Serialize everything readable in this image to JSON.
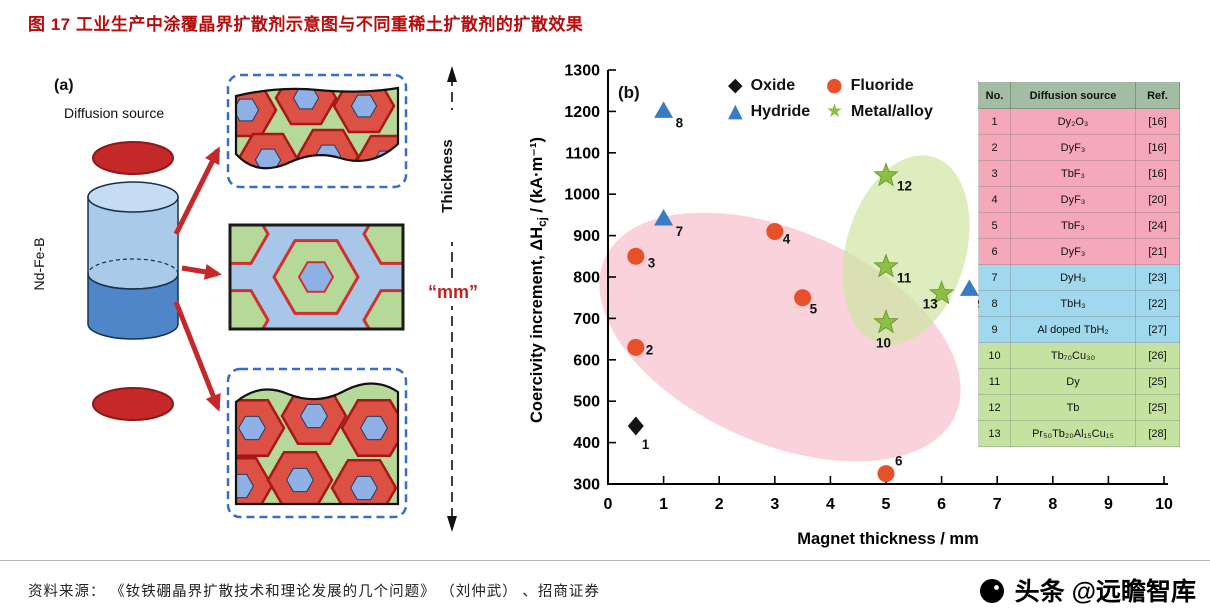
{
  "page": {
    "title": "图 17  工业生产中涂覆晶界扩散剂示意图与不同重稀土扩散剂的扩散效果",
    "source_line": "资料来源：  《钕铁硼晶界扩散技术和理论发展的几个问题》 （刘仲武） 、招商证券",
    "watermark": "头条 @远瞻智库"
  },
  "panel_a": {
    "label": "(a)",
    "diffusion_source": "Diffusion source",
    "material": "Nd-Fe-B",
    "thickness": "Thickness",
    "mm": "“mm”"
  },
  "chart_data": {
    "type": "scatter",
    "panel_label": "(b)",
    "xlabel": "Magnet thickness / mm",
    "ylabel": {
      "prefix": "Coercivity increment, ΔH",
      "sub": "cj",
      "suffix": " / (kA·m⁻¹)"
    },
    "xlim": [
      0,
      10
    ],
    "ylim": [
      300,
      1300
    ],
    "x_ticks": [
      0,
      1,
      2,
      3,
      4,
      5,
      6,
      7,
      8,
      9,
      10
    ],
    "y_ticks": [
      300,
      400,
      500,
      600,
      700,
      800,
      900,
      1000,
      1100,
      1200,
      1300
    ],
    "grid": false,
    "legend_position": "top-left-inside",
    "legend": [
      {
        "label": "Oxide",
        "marker": "diamond",
        "color": "#141414"
      },
      {
        "label": "Fluoride",
        "marker": "circle",
        "color": "#e8502a"
      },
      {
        "label": "Hydride",
        "marker": "triangle",
        "color": "#3a7cc4"
      },
      {
        "label": "Metal/alloy",
        "marker": "star",
        "color": "#8cc045"
      }
    ],
    "highlight_regions": [
      {
        "name": "fluoride-region",
        "color": "#f4a6ba"
      },
      {
        "name": "metal-alloy-region",
        "color": "#cfe6a2"
      }
    ],
    "points": [
      {
        "no": "1",
        "x": 0.5,
        "y": 440,
        "series": "Oxide"
      },
      {
        "no": "2",
        "x": 0.5,
        "y": 630,
        "series": "Fluoride"
      },
      {
        "no": "3",
        "x": 0.5,
        "y": 850,
        "series": "Fluoride"
      },
      {
        "no": "4",
        "x": 3.0,
        "y": 910,
        "series": "Fluoride"
      },
      {
        "no": "5",
        "x": 3.5,
        "y": 750,
        "series": "Fluoride"
      },
      {
        "no": "6",
        "x": 5.0,
        "y": 325,
        "series": "Fluoride"
      },
      {
        "no": "7",
        "x": 1.0,
        "y": 940,
        "series": "Hydride"
      },
      {
        "no": "8",
        "x": 1.0,
        "y": 1200,
        "series": "Hydride"
      },
      {
        "no": "9",
        "x": 6.5,
        "y": 770,
        "series": "Hydride"
      },
      {
        "no": "10",
        "x": 5.0,
        "y": 690,
        "series": "Metal/alloy"
      },
      {
        "no": "11",
        "x": 5.0,
        "y": 825,
        "series": "Metal/alloy"
      },
      {
        "no": "12",
        "x": 5.0,
        "y": 1045,
        "series": "Metal/alloy"
      },
      {
        "no": "13",
        "x": 6.0,
        "y": 760,
        "series": "Metal/alloy"
      }
    ],
    "table": {
      "headers": [
        "No.",
        "Diffusion source",
        "Ref."
      ],
      "rows": [
        {
          "no": "1",
          "source": "Dy₂O₃",
          "ref": "[16]",
          "group": "oxide"
        },
        {
          "no": "2",
          "source": "DyF₃",
          "ref": "[16]",
          "group": "fluoride"
        },
        {
          "no": "3",
          "source": "TbF₃",
          "ref": "[16]",
          "group": "fluoride"
        },
        {
          "no": "4",
          "source": "DyF₃",
          "ref": "[20]",
          "group": "fluoride"
        },
        {
          "no": "5",
          "source": "TbF₃",
          "ref": "[24]",
          "group": "fluoride"
        },
        {
          "no": "6",
          "source": "DyF₃",
          "ref": "[21]",
          "group": "fluoride"
        },
        {
          "no": "7",
          "source": "DyH₃",
          "ref": "[23]",
          "group": "hydride"
        },
        {
          "no": "8",
          "source": "TbH₃",
          "ref": "[22]",
          "group": "hydride"
        },
        {
          "no": "9",
          "source": "Al doped TbH₂",
          "ref": "[27]",
          "group": "hydride"
        },
        {
          "no": "10",
          "source": "Tb₇₀Cu₃₀",
          "ref": "[26]",
          "group": "metal"
        },
        {
          "no": "11",
          "source": "Dy",
          "ref": "[25]",
          "group": "metal"
        },
        {
          "no": "12",
          "source": "Tb",
          "ref": "[25]",
          "group": "metal"
        },
        {
          "no": "13",
          "source": "Pr₅₀Tb₂₀Al₁₅Cu₁₅",
          "ref": "[28]",
          "group": "metal"
        }
      ]
    }
  }
}
